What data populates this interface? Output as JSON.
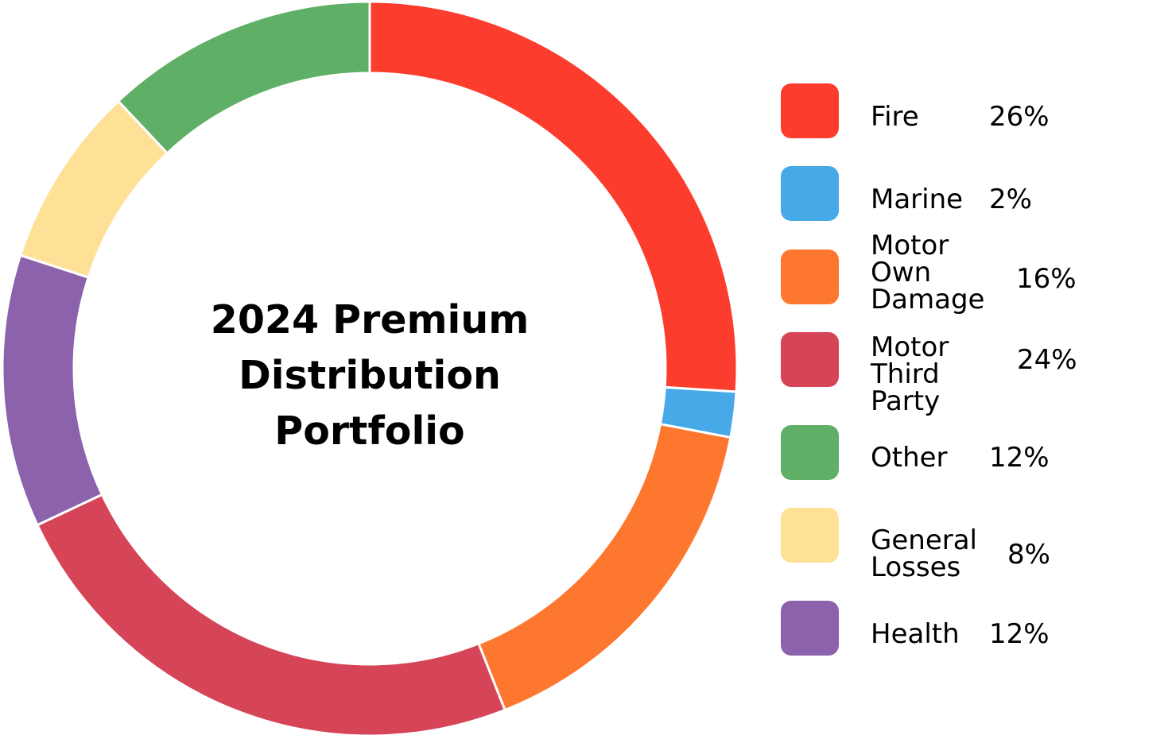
{
  "chart_data": {
    "type": "pie",
    "variant": "donut",
    "title": "2024 Premium Distribution Portfolio",
    "title_lines": [
      "2024 Premium",
      "Distribution",
      "Portfolio"
    ],
    "legend_position": "right",
    "slices": [
      {
        "label": "Fire",
        "label_lines": [
          "Fire"
        ],
        "value": 26,
        "display": "26%",
        "color": "#FC3C2D"
      },
      {
        "label": "Marine",
        "label_lines": [
          "Marine"
        ],
        "value": 2,
        "display": "2%",
        "color": "#47A9E8"
      },
      {
        "label": "Motor Own Damage",
        "label_lines": [
          "Motor",
          "Own",
          "Damage"
        ],
        "value": 16,
        "display": "16%",
        "color": "#FE772E"
      },
      {
        "label": "Motor Third Party",
        "label_lines": [
          "Motor",
          "Third",
          "Party"
        ],
        "value": 24,
        "display": "24%",
        "color": "#D64457"
      },
      {
        "label": "Other",
        "label_lines": [
          "Other"
        ],
        "value": 12,
        "display": "12%",
        "color": "#5FAF66"
      },
      {
        "label": "General Losses",
        "label_lines": [
          "General",
          "Losses"
        ],
        "value": 8,
        "display": "8%",
        "color": "#FEE096"
      },
      {
        "label": "Health",
        "label_lines": [
          "Health"
        ],
        "value": 12,
        "display": "12%",
        "color": "#8B62AB"
      }
    ],
    "ring_order": [
      "Fire",
      "Marine",
      "Motor Own Damage",
      "Motor Third Party",
      "Health",
      "General Losses",
      "Other"
    ]
  }
}
